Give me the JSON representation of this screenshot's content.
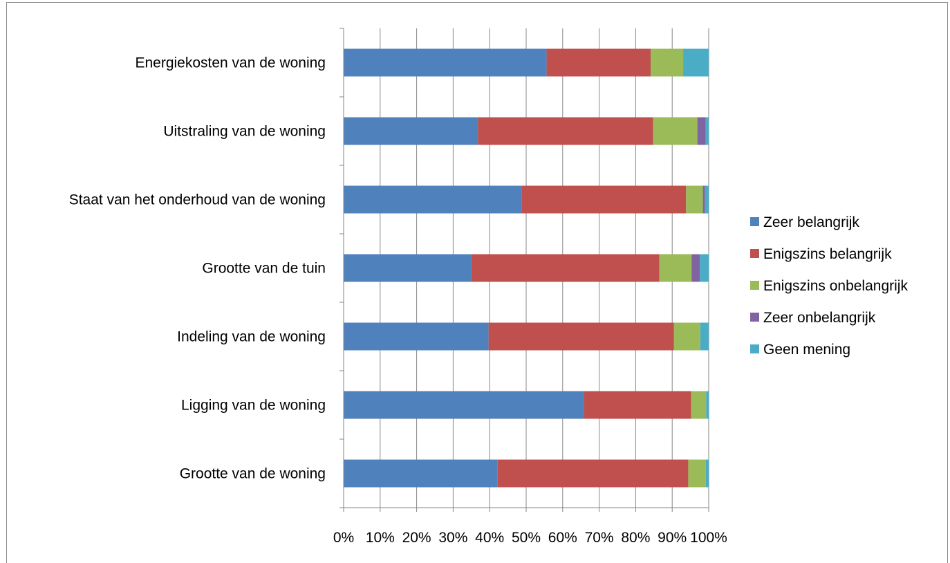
{
  "chart_data": {
    "type": "bar",
    "orientation": "horizontal",
    "stacked": "percent",
    "categories": [
      "Energiekosten van de woning",
      "Uitstraling van de woning",
      "Staat van het onderhoud van de woning",
      "Grootte van de tuin",
      "Indeling van de woning",
      "Ligging van de woning",
      "Grootte van de woning"
    ],
    "series": [
      {
        "name": "Zeer belangrijk",
        "color": "#4f81bd",
        "values": [
          55.6,
          36.8,
          48.7,
          34.9,
          39.7,
          65.9,
          42.2
        ]
      },
      {
        "name": "Enigszins belangrijk",
        "color": "#c0504d",
        "values": [
          28.5,
          48.0,
          45.1,
          51.6,
          50.8,
          29.3,
          52.2
        ]
      },
      {
        "name": "Enigszins onbelangrijk",
        "color": "#9bbb59",
        "values": [
          8.9,
          12.1,
          4.6,
          8.8,
          7.2,
          4.1,
          4.8
        ]
      },
      {
        "name": "Zeer onbelangrijk",
        "color": "#8064a2",
        "values": [
          0.0,
          2.3,
          0.6,
          2.3,
          0.0,
          0.0,
          0.0
        ]
      },
      {
        "name": "Geen mening",
        "color": "#4bacc6",
        "values": [
          7.0,
          0.8,
          1.0,
          2.4,
          2.3,
          0.7,
          0.8
        ]
      }
    ],
    "xlim": [
      0,
      100
    ],
    "xticks": [
      "0%",
      "10%",
      "20%",
      "30%",
      "40%",
      "50%",
      "60%",
      "70%",
      "80%",
      "90%",
      "100%"
    ],
    "grid": true,
    "legend_position": "right",
    "title": "",
    "xlabel": "",
    "ylabel": ""
  }
}
